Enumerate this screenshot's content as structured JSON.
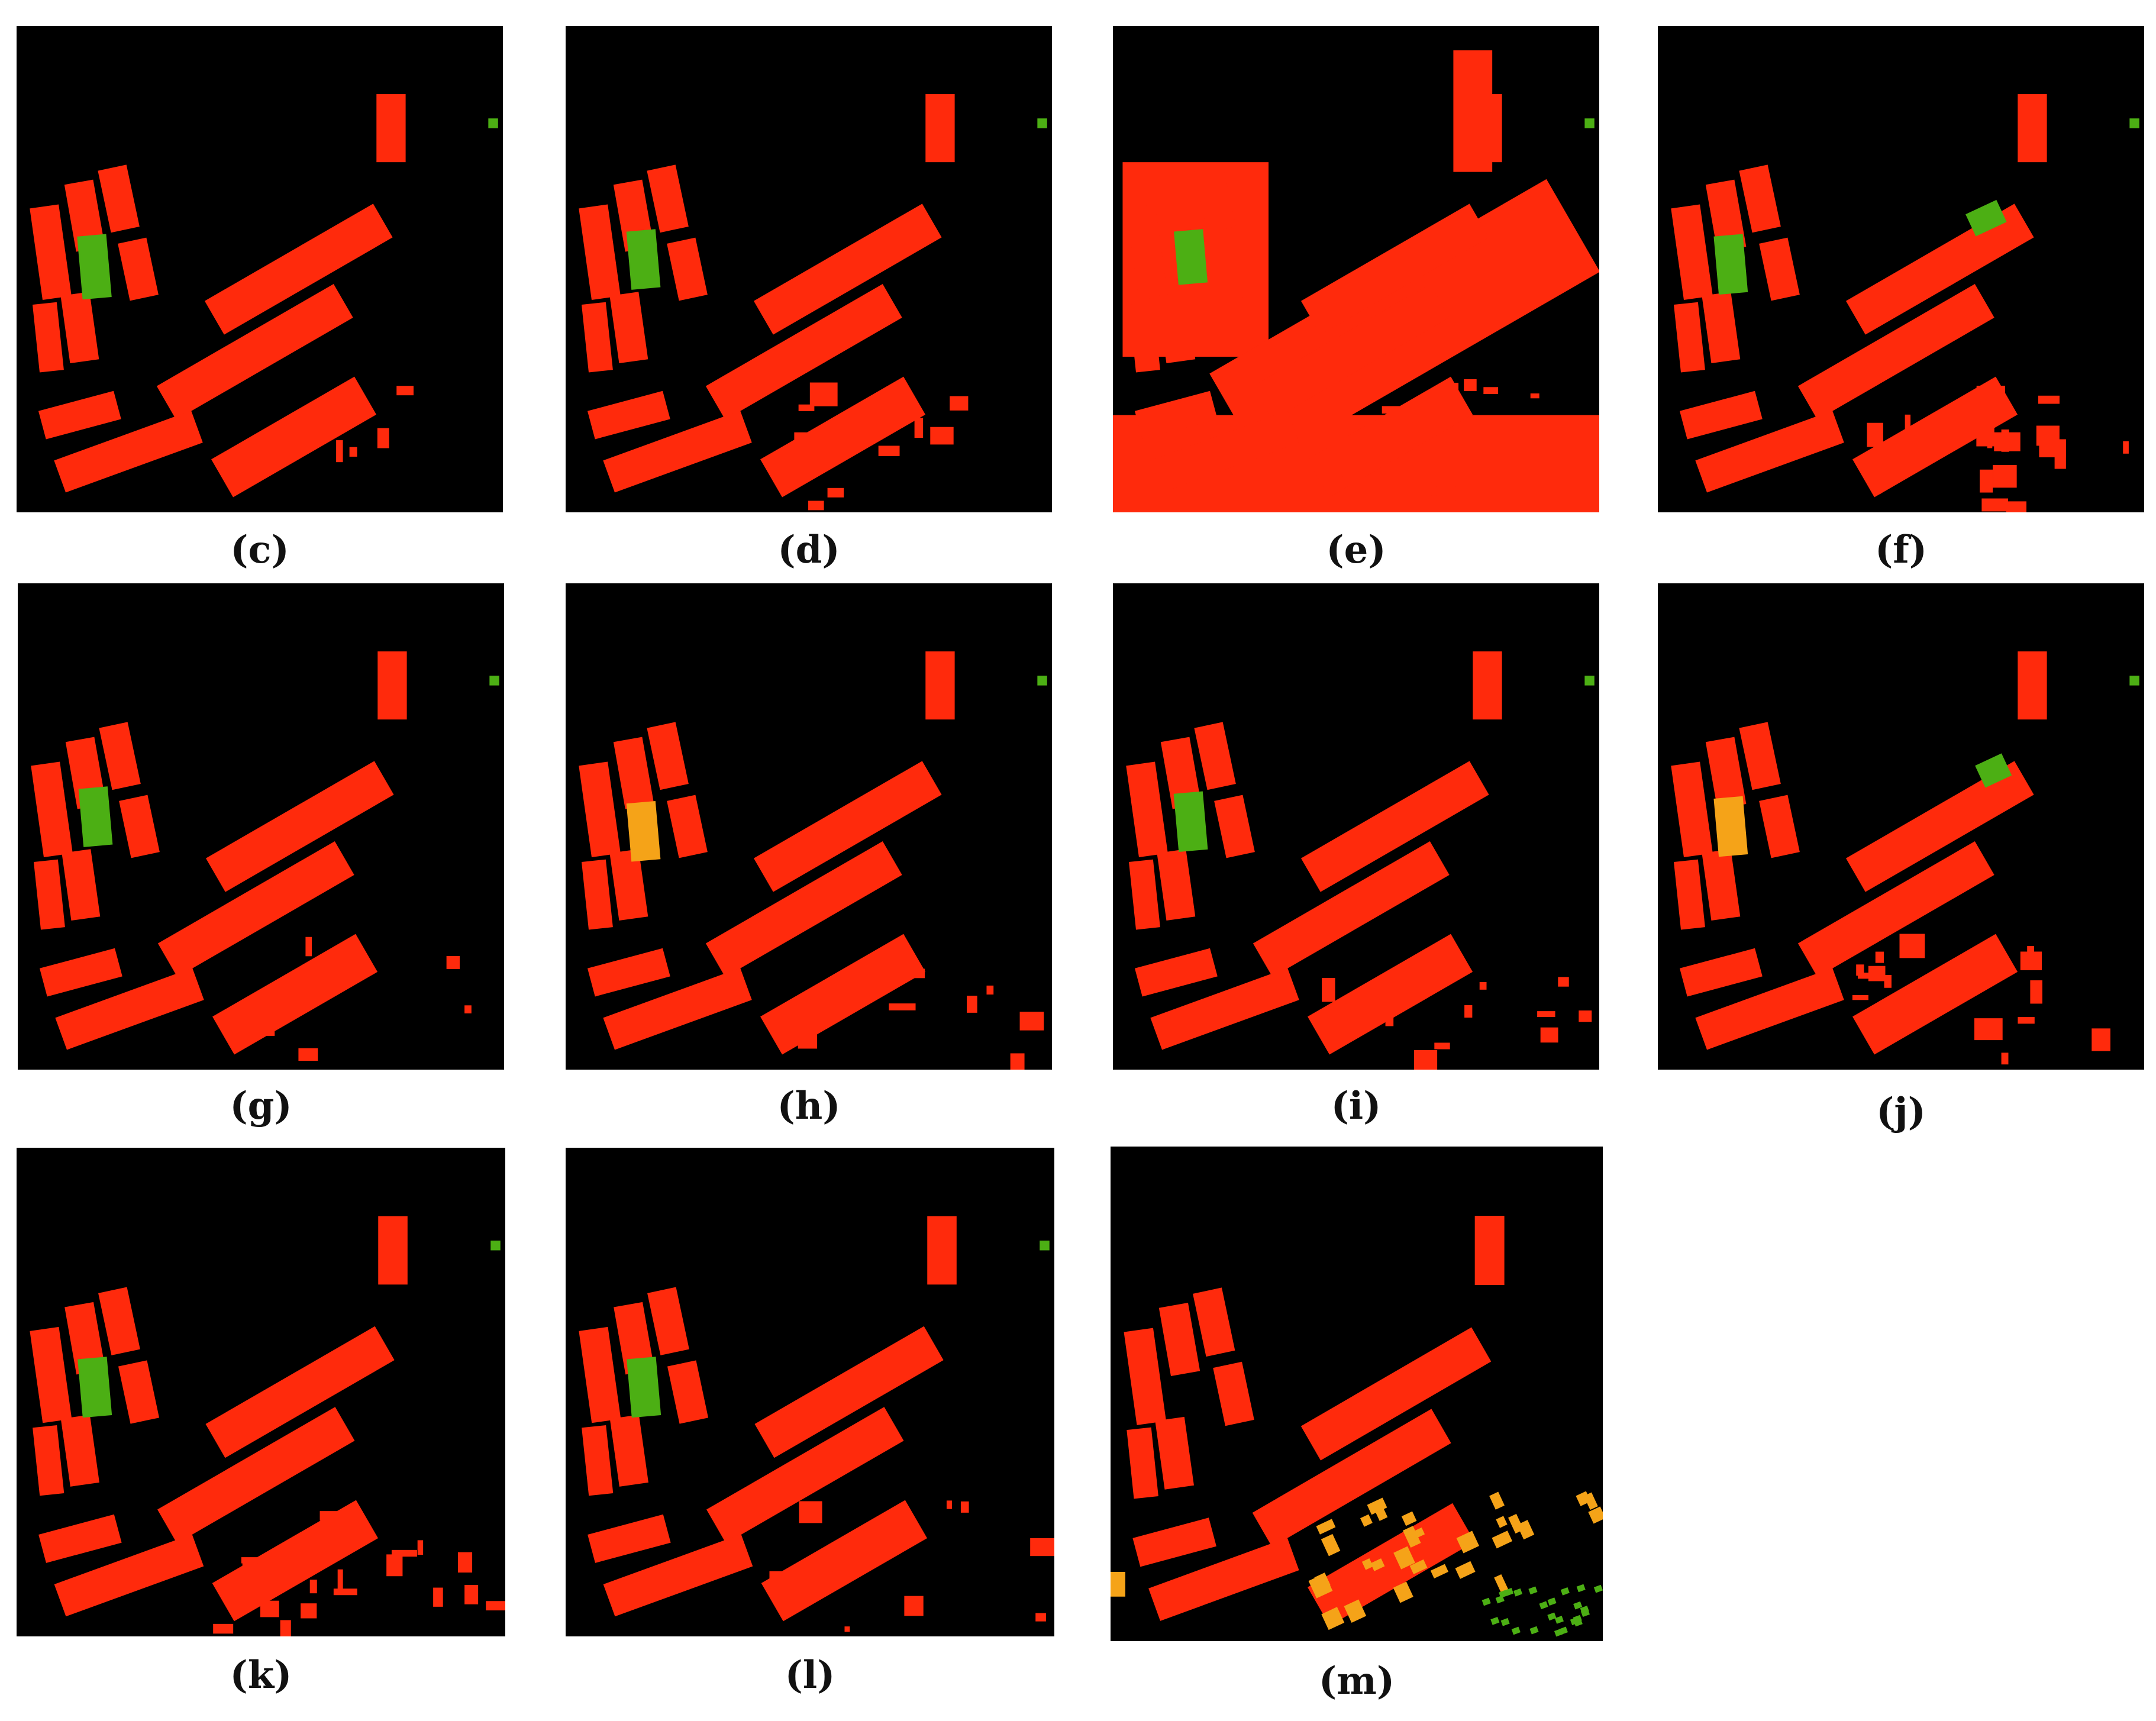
{
  "colors": {
    "background": "#000000",
    "building_red": "#ff2a0c",
    "vegetation_green": "#4caf14",
    "orange": "#f5a318"
  },
  "panels": [
    {
      "id": "c",
      "label": "(c)"
    },
    {
      "id": "d",
      "label": "(d)"
    },
    {
      "id": "e",
      "label": "(e)"
    },
    {
      "id": "f",
      "label": "(f)"
    },
    {
      "id": "g",
      "label": "(g)"
    },
    {
      "id": "h",
      "label": "(h)"
    },
    {
      "id": "i",
      "label": "(i)"
    },
    {
      "id": "j",
      "label": "(j)"
    },
    {
      "id": "k",
      "label": "(k)"
    },
    {
      "id": "l",
      "label": "(l)"
    },
    {
      "id": "m",
      "label": "(m)"
    }
  ]
}
